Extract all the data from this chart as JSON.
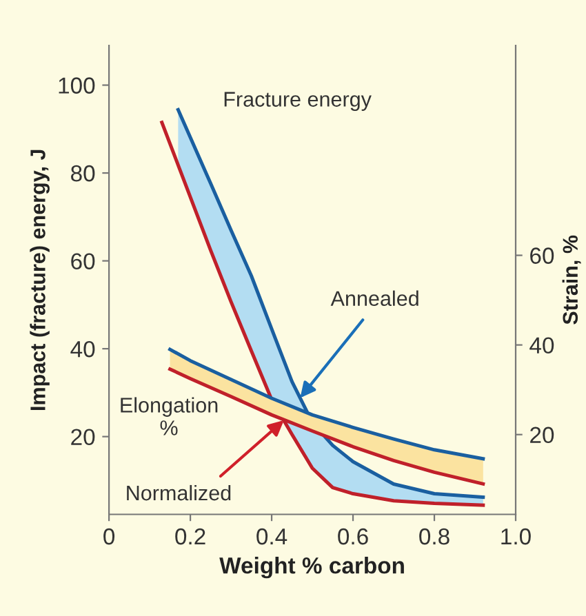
{
  "chart_data": {
    "type": "line",
    "xlabel": "Weight % carbon",
    "ylabel": "Impact (fracture) energy, J",
    "y2label": "Strain, %",
    "xlim": [
      0,
      1.0
    ],
    "xticks": [
      0,
      0.2,
      0.4,
      0.6,
      0.8,
      {
        "value": 1.0,
        "label": "1.0"
      }
    ],
    "ylim": [
      2.3,
      109
    ],
    "yticks": [
      20,
      40,
      60,
      80,
      100
    ],
    "y2lim": [
      2.2,
      106.8
    ],
    "y2ticks": [
      20,
      40,
      60
    ],
    "grid": false,
    "legend": false,
    "marker": "none",
    "line_style": "solid",
    "series": [
      {
        "color": "#1a5fa0",
        "x": [
          0.17,
          0.25,
          0.3,
          0.35,
          0.4,
          0.45,
          0.5,
          0.55,
          0.6,
          0.7,
          0.8,
          0.92
        ],
        "values": [
          94.4,
          77.6,
          67,
          56.6,
          44.5,
          32.5,
          23.2,
          18,
          14.3,
          9.2,
          7,
          6.2
        ],
        "lower": [
          81.8,
          62.4,
          50.7,
          39.5,
          28.4,
          20.5,
          12.8,
          8.4,
          7,
          5.4,
          4.8,
          4.4
        ],
        "upper": [
          94.4,
          77.6,
          67,
          56.6,
          44.5,
          32.5,
          23.2,
          18,
          14.3,
          9.2,
          7,
          6.2
        ]
      },
      {
        "color": "#c0202a",
        "x": [
          0.13,
          0.17,
          0.25,
          0.3,
          0.35,
          0.4,
          0.45,
          0.5,
          0.55,
          0.6,
          0.7,
          0.8,
          0.92
        ],
        "values": [
          91.5,
          81.8,
          62.4,
          50.7,
          39.5,
          28.4,
          20.5,
          12.8,
          8.4,
          7,
          5.4,
          4.8,
          4.4
        ]
      },
      {
        "color": "#1a5fa0",
        "axis": "y2",
        "x": [
          0.15,
          0.2,
          0.3,
          0.4,
          0.5,
          0.6,
          0.7,
          0.8,
          0.92
        ],
        "values": [
          39,
          36.5,
          32.3,
          28.1,
          24.4,
          21.6,
          19,
          16.6,
          14.6
        ],
        "lower": [
          34.6,
          32.5,
          28.5,
          24.4,
          20.8,
          17.3,
          14.2,
          11.6,
          9
        ],
        "upper": [
          39,
          36.5,
          32.3,
          28.1,
          24.4,
          21.6,
          19,
          16.6,
          14.6
        ]
      },
      {
        "color": "#c0202a",
        "axis": "y2",
        "x": [
          0.15,
          0.2,
          0.3,
          0.4,
          0.5,
          0.6,
          0.7,
          0.8,
          0.92
        ],
        "values": [
          34.6,
          32.5,
          28.5,
          24.4,
          20.8,
          17.3,
          14.2,
          11.6,
          9
        ]
      }
    ],
    "annotations": [
      "Fracture energy",
      "Elongation\n%",
      {
        "text": "Annealed",
        "x": 0.47,
        "y": 28.8
      },
      {
        "text": "Normalized",
        "x": 0.43,
        "y": 23.7
      }
    ]
  }
}
